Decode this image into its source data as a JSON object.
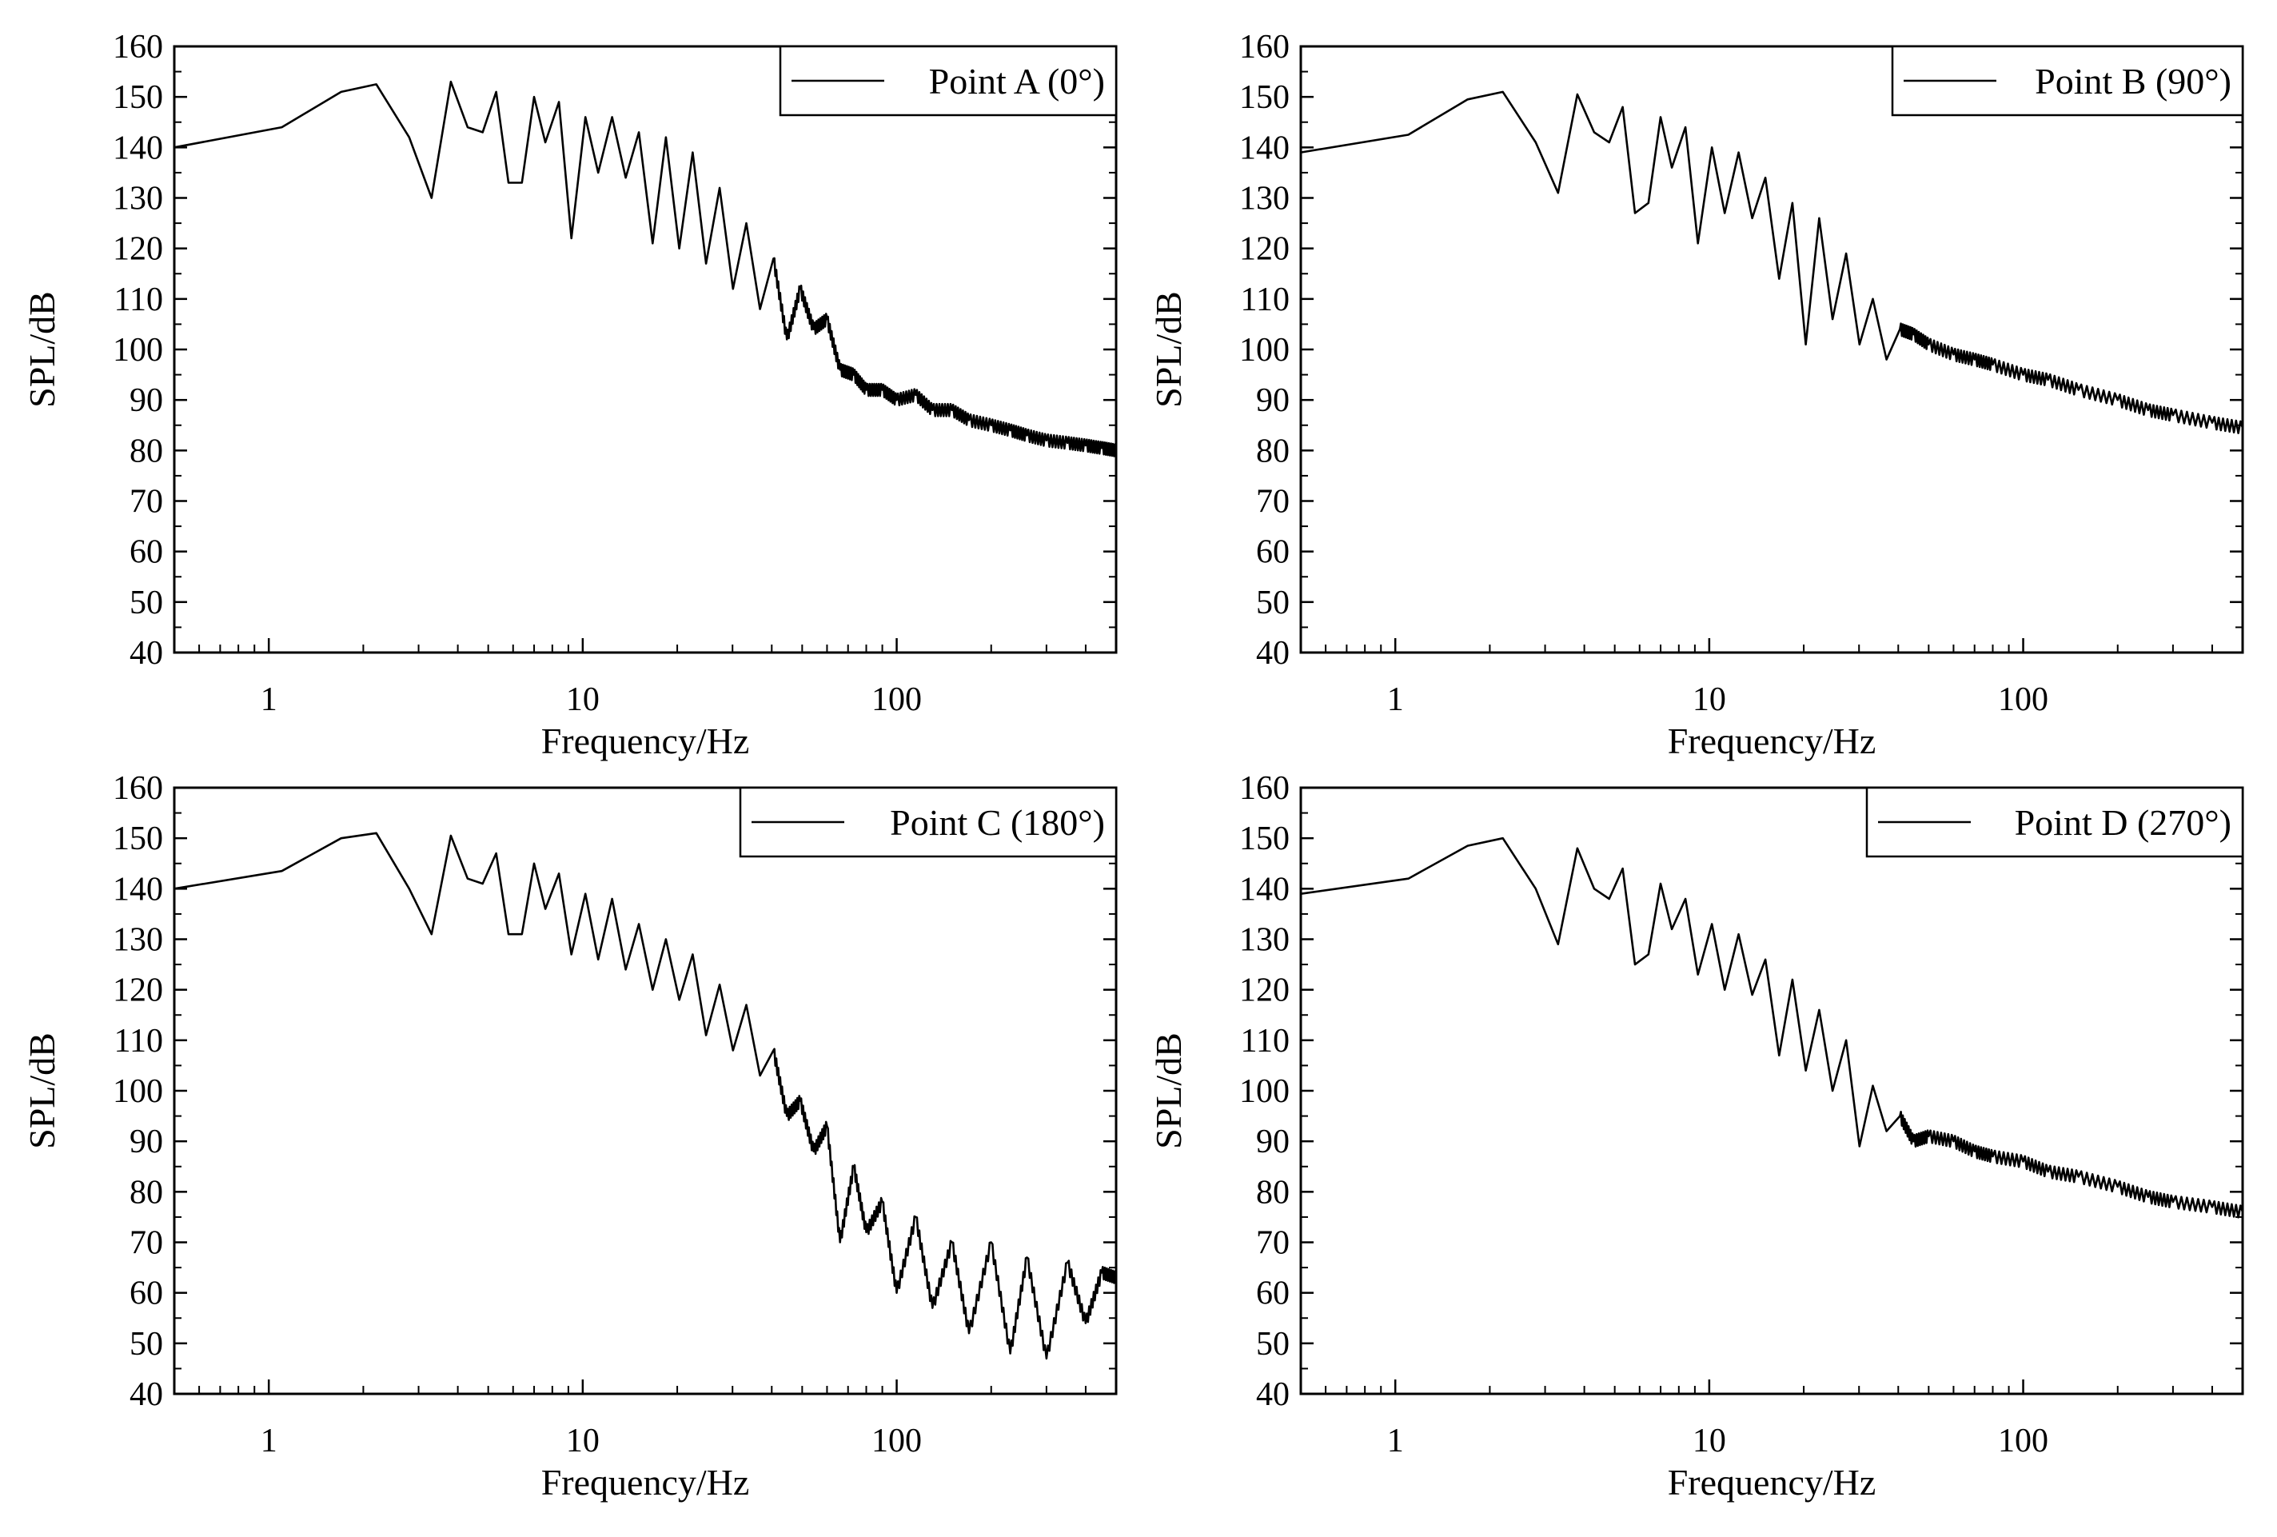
{
  "style": {
    "line_color": "#000000",
    "background": "#ffffff"
  },
  "chart_data": [
    {
      "id": "A",
      "type": "line",
      "xscale": "log",
      "xlabel": "Frequency/Hz",
      "ylabel": "SPL/dB",
      "xlim": [
        0.5,
        500
      ],
      "ylim": [
        40,
        160
      ],
      "yticks": [
        "40",
        "50",
        "60",
        "70",
        "80",
        "90",
        "100",
        "110",
        "120",
        "130",
        "140",
        "150",
        "160"
      ],
      "xticks": [
        "1",
        "10",
        "100"
      ],
      "legend": {
        "label": "Point A (0°)",
        "position": "top-right"
      },
      "series": [
        {
          "name": "Point A (0°)",
          "x": [
            0.5,
            1.1,
            1.7,
            2.2,
            2.8,
            3.3,
            3.8,
            4.3,
            4.8,
            5.3,
            5.8,
            6.4,
            7.0,
            7.6,
            8.4,
            9.2,
            10.2,
            11.2,
            12.4,
            13.7,
            15.1,
            16.7,
            18.4,
            20.3,
            22.4,
            24.7,
            27.3,
            30.1,
            33.2,
            36.7,
            40.5,
            44.7,
            49.3,
            54.4,
            60.0,
            66.0,
            73.0,
            80.0,
            90.0,
            100.0,
            115.0,
            130.0,
            150.0,
            170.0,
            200.0,
            230.0,
            260.0,
            300.0,
            350.0,
            400.0,
            450.0,
            500.0
          ],
          "y": [
            140,
            144,
            151,
            152.5,
            142,
            130,
            153,
            144,
            143,
            151,
            133,
            133,
            150,
            141,
            149,
            122,
            146,
            135,
            146,
            134,
            143,
            121,
            142,
            120,
            139,
            117,
            132,
            112,
            125,
            108,
            118,
            102,
            112,
            104,
            106,
            96,
            95,
            92,
            92,
            90,
            91,
            88,
            88,
            86,
            85,
            84,
            83,
            82,
            81.5,
            81,
            80.5,
            80
          ]
        }
      ]
    },
    {
      "id": "B",
      "type": "line",
      "xscale": "log",
      "xlabel": "Frequency/Hz",
      "ylabel": "SPL/dB",
      "xlim": [
        0.5,
        500
      ],
      "ylim": [
        40,
        160
      ],
      "yticks": [
        "40",
        "50",
        "60",
        "70",
        "80",
        "90",
        "100",
        "110",
        "120",
        "130",
        "140",
        "150",
        "160"
      ],
      "xticks": [
        "1",
        "10",
        "100"
      ],
      "legend": {
        "label": "Point B (90°)",
        "position": "top-right"
      },
      "series": [
        {
          "name": "Point B (90°)",
          "x": [
            0.5,
            1.1,
            1.7,
            2.2,
            2.8,
            3.3,
            3.8,
            4.3,
            4.8,
            5.3,
            5.8,
            6.4,
            7.0,
            7.6,
            8.4,
            9.2,
            10.2,
            11.2,
            12.4,
            13.7,
            15.1,
            16.7,
            18.4,
            20.3,
            22.4,
            24.7,
            27.3,
            30.1,
            33.2,
            36.7,
            40.5,
            44.7,
            50.0,
            60.0,
            70.0,
            80.0,
            100.0,
            120.0,
            150.0,
            200.0,
            250.0,
            300.0,
            400.0,
            500.0
          ],
          "y": [
            139,
            142.5,
            149.5,
            151,
            141,
            131,
            150.5,
            143,
            141,
            148,
            127,
            129,
            146,
            136,
            144,
            121,
            140,
            127,
            139,
            126,
            134,
            114,
            129,
            101,
            126,
            106,
            119,
            101,
            110,
            98,
            104,
            103,
            101,
            99,
            98,
            97,
            95,
            94,
            92,
            90,
            88,
            87,
            85.5,
            84.5
          ]
        }
      ]
    },
    {
      "id": "C",
      "type": "line",
      "xscale": "log",
      "xlabel": "Frequency/Hz",
      "ylabel": "SPL/dB",
      "xlim": [
        0.5,
        500
      ],
      "ylim": [
        40,
        160
      ],
      "yticks": [
        "40",
        "50",
        "60",
        "70",
        "80",
        "90",
        "100",
        "110",
        "120",
        "130",
        "140",
        "150",
        "160"
      ],
      "xticks": [
        "1",
        "10",
        "100"
      ],
      "legend": {
        "label": "Point C (180°)",
        "position": "top-right"
      },
      "series": [
        {
          "name": "Point C (180°)",
          "x": [
            0.5,
            1.1,
            1.7,
            2.2,
            2.8,
            3.3,
            3.8,
            4.3,
            4.8,
            5.3,
            5.8,
            6.4,
            7.0,
            7.6,
            8.4,
            9.2,
            10.2,
            11.2,
            12.4,
            13.7,
            15.1,
            16.7,
            18.4,
            20.3,
            22.4,
            24.7,
            27.3,
            30.1,
            33.2,
            36.7,
            40.5,
            44.7,
            49.3,
            54.4,
            60.0,
            66.0,
            73.0,
            80.0,
            90.0,
            100.0,
            115.0,
            130.0,
            150.0,
            170.0,
            200.0,
            230.0,
            260.0,
            300.0,
            350.0,
            400.0,
            450.0,
            500.0
          ],
          "y": [
            140,
            143.5,
            150,
            151,
            140,
            131,
            150.5,
            142,
            141,
            147,
            131,
            131,
            145,
            136,
            143,
            127,
            139,
            126,
            138,
            124,
            133,
            120,
            130,
            118,
            127,
            111,
            121,
            108,
            117,
            103,
            108,
            95,
            98,
            88,
            93,
            70,
            85,
            72,
            78,
            60,
            75,
            57,
            70,
            52,
            70,
            48,
            67,
            47,
            66,
            54,
            64,
            63
          ]
        }
      ]
    },
    {
      "id": "D",
      "type": "line",
      "xscale": "log",
      "xlabel": "Frequency/Hz",
      "ylabel": "SPL/dB",
      "xlim": [
        0.5,
        500
      ],
      "ylim": [
        40,
        160
      ],
      "yticks": [
        "40",
        "50",
        "60",
        "70",
        "80",
        "90",
        "100",
        "110",
        "120",
        "130",
        "140",
        "150",
        "160"
      ],
      "xticks": [
        "1",
        "10",
        "100"
      ],
      "legend": {
        "label": "Point D (270°)",
        "position": "top-right"
      },
      "series": [
        {
          "name": "Point D (270°)",
          "x": [
            0.5,
            1.1,
            1.7,
            2.2,
            2.8,
            3.3,
            3.8,
            4.3,
            4.8,
            5.3,
            5.8,
            6.4,
            7.0,
            7.6,
            8.4,
            9.2,
            10.2,
            11.2,
            12.4,
            13.7,
            15.1,
            16.7,
            18.4,
            20.3,
            22.4,
            24.7,
            27.3,
            30.1,
            33.2,
            36.7,
            40.5,
            44.7,
            50.0,
            60.0,
            70.0,
            80.0,
            100.0,
            120.0,
            150.0,
            200.0,
            250.0,
            300.0,
            400.0,
            500.0
          ],
          "y": [
            139,
            142,
            148.5,
            150,
            140,
            129,
            148,
            140,
            138,
            144,
            125,
            127,
            141,
            132,
            138,
            123,
            133,
            120,
            131,
            119,
            126,
            107,
            122,
            104,
            116,
            100,
            110,
            89,
            101,
            92,
            95,
            90,
            91,
            90,
            88,
            87,
            86,
            84,
            83,
            81,
            79,
            78,
            77,
            76
          ]
        }
      ]
    }
  ]
}
